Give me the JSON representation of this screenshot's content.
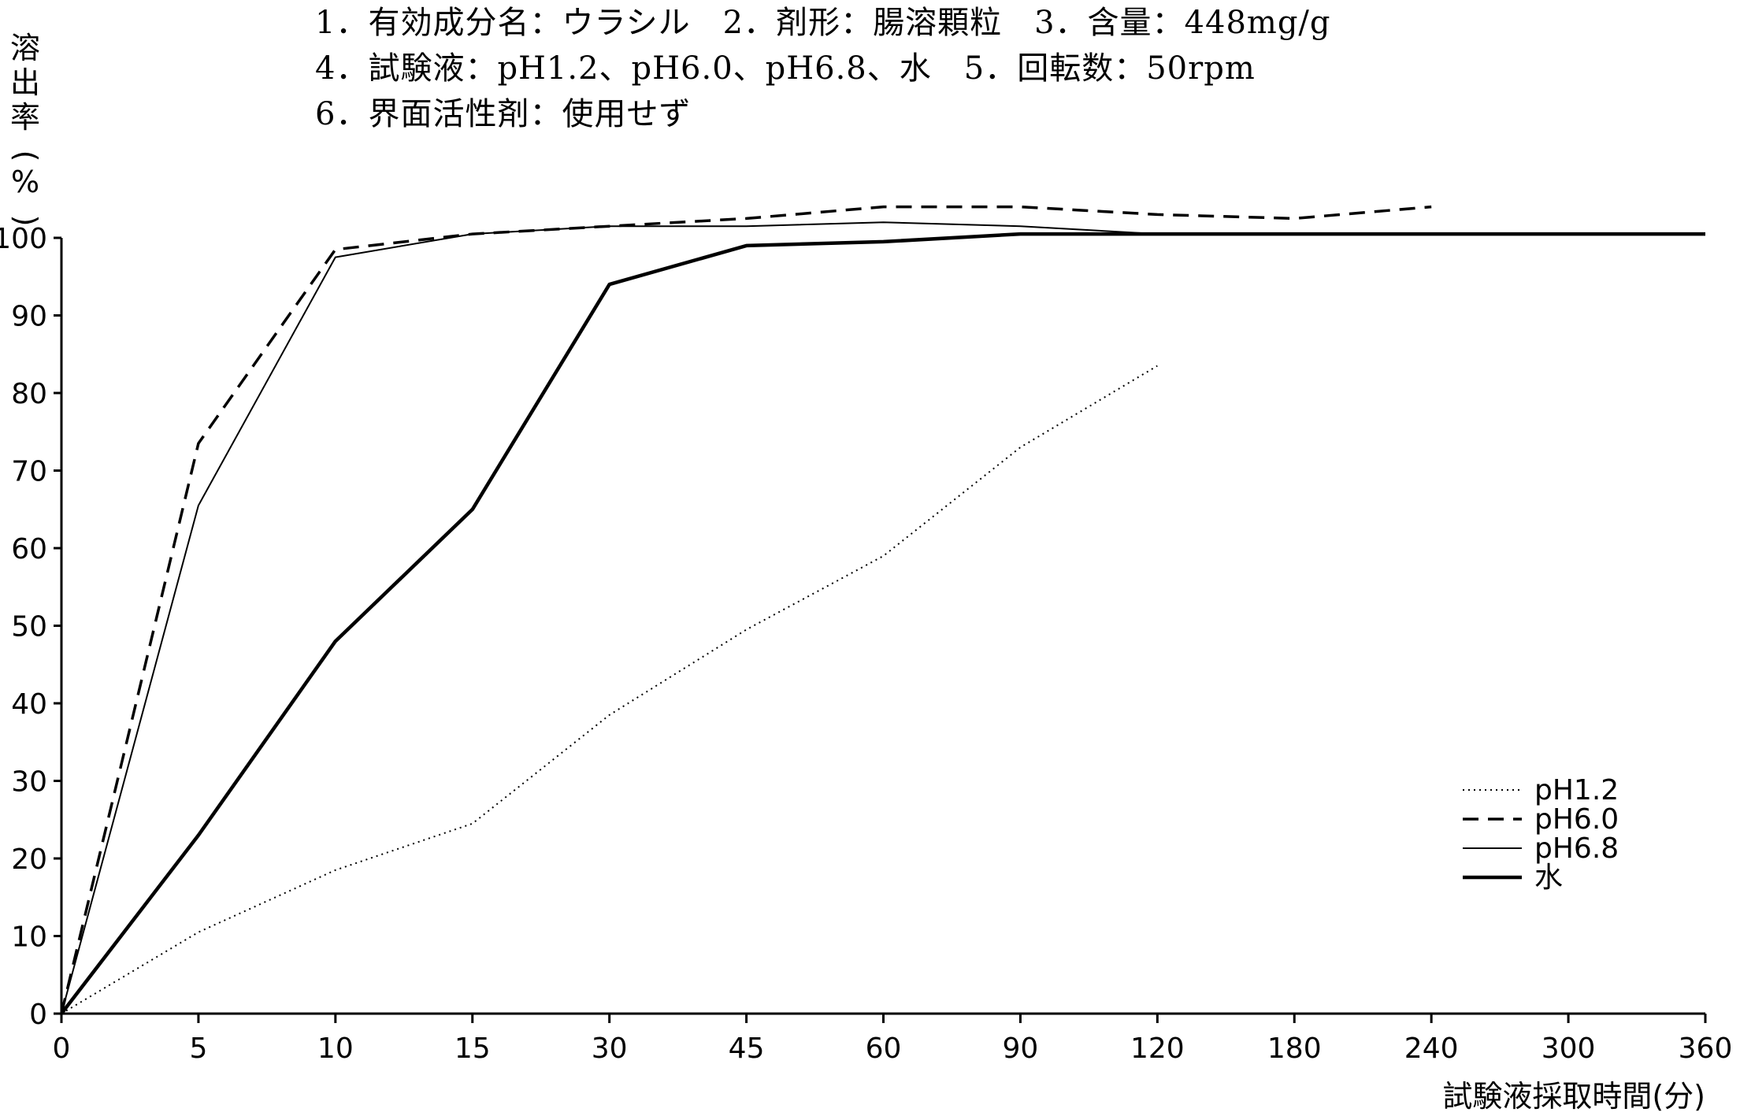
{
  "header": {
    "line1": "1．有効成分名：ウラシル　2．剤形：腸溶顆粒　3．含量：448mg/g",
    "line2": "4．試験液：pH1.2、pH6.0、pH6.8、水　5．回転数：50rpm",
    "line3": "6．界面活性剤：使用せず"
  },
  "chart_data": {
    "type": "line",
    "title": "",
    "xlabel": "試験液採取時間(分)",
    "ylabel": "溶出率(%)",
    "categories": [
      "0",
      "5",
      "10",
      "15",
      "30",
      "45",
      "60",
      "90",
      "120",
      "180",
      "240",
      "300",
      "360"
    ],
    "ylim": [
      0,
      100
    ],
    "yticks": [
      "0",
      "10",
      "20",
      "30",
      "40",
      "50",
      "60",
      "70",
      "80",
      "90",
      "100"
    ],
    "grid": false,
    "legend_position": "bottom-right",
    "series": [
      {
        "name": "pH1.2",
        "style": "dotted",
        "values": [
          0,
          10.5,
          18.5,
          24.5,
          38.5,
          49.5,
          59,
          73,
          83.5,
          null,
          null,
          null,
          null
        ]
      },
      {
        "name": "pH6.0",
        "style": "dashed",
        "values": [
          0,
          73.5,
          98.5,
          100.5,
          101.5,
          102.5,
          104,
          104,
          103,
          102.5,
          104,
          null,
          null
        ]
      },
      {
        "name": "pH6.8",
        "style": "thin-solid",
        "values": [
          0,
          65.5,
          97.5,
          100.5,
          101.5,
          101.5,
          102,
          101.5,
          100.5,
          null,
          null,
          null,
          null
        ]
      },
      {
        "name": "水",
        "style": "thick-solid",
        "values": [
          0,
          23,
          48,
          65,
          94,
          99,
          99.5,
          100.5,
          100.5,
          100.5,
          100.5,
          100.5,
          100.5
        ]
      }
    ]
  }
}
